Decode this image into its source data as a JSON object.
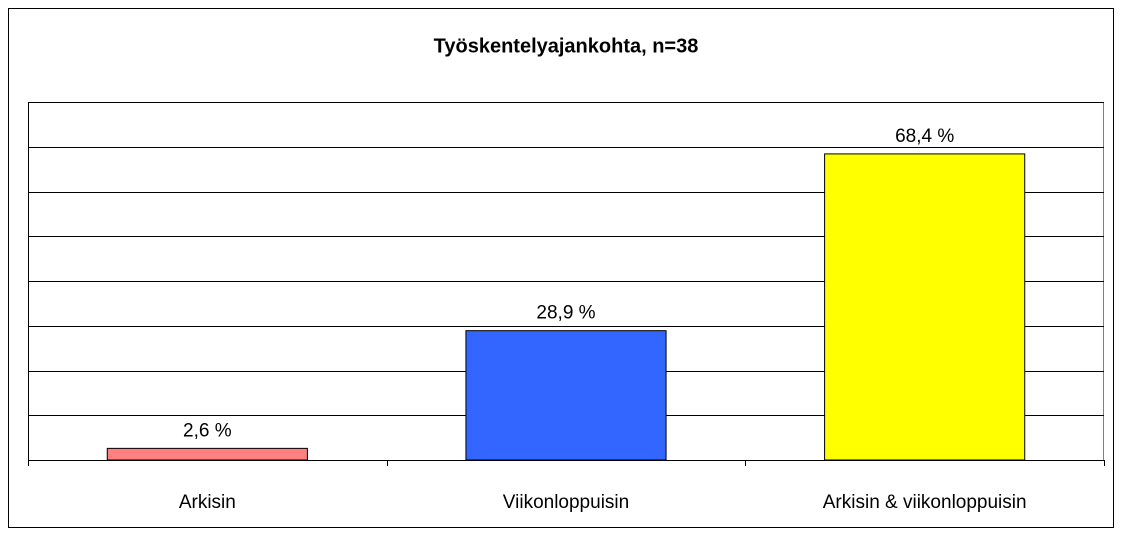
{
  "chart_data": {
    "type": "bar",
    "title": "Työskentelyajankohta, n=38",
    "categories": [
      "Arkisin",
      "Viikonloppuisin",
      "Arkisin & viikonloppuisin"
    ],
    "values": [
      2.6,
      28.9,
      68.4
    ],
    "value_labels": [
      "2,6 %",
      "28,9 %",
      "68,4 %"
    ],
    "colors": [
      "#ff8080",
      "#3366ff",
      "#ffff00"
    ],
    "ylim": [
      0,
      80
    ],
    "yticks": [
      0,
      10,
      20,
      30,
      40,
      50,
      60,
      70,
      80
    ],
    "grid": true
  }
}
